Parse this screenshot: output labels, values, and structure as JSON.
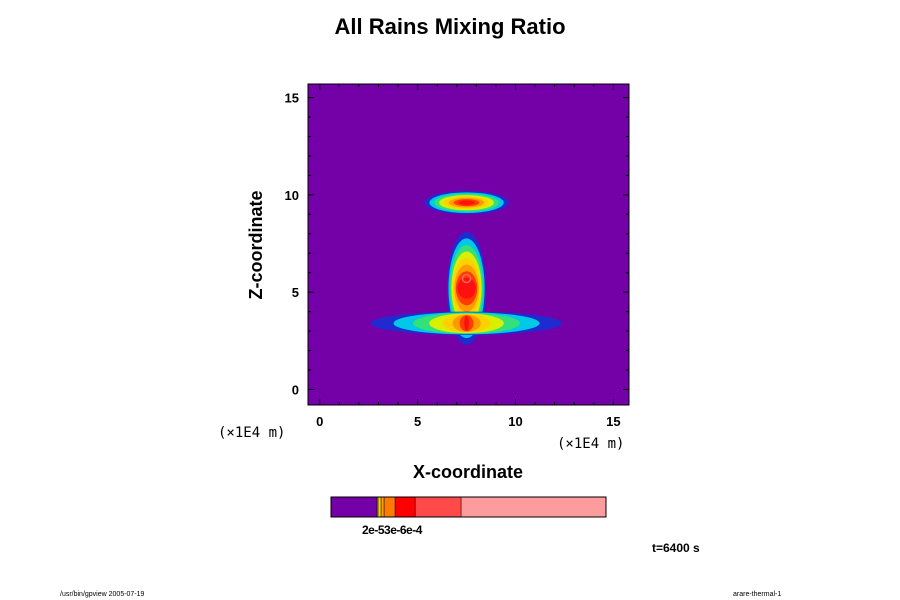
{
  "title": "All Rains Mixing Ratio",
  "chart_data": {
    "type": "heatmap",
    "title": "All Rains Mixing Ratio",
    "xlabel": "X-coordinate",
    "ylabel": "Z-coordinate",
    "x_unit_label": "(×1E4 m)",
    "y_unit_label": "(×1E4 m)",
    "xlim": [
      -0.6,
      15.8
    ],
    "ylim": [
      -0.8,
      15.7
    ],
    "x_ticks": [
      0,
      5,
      10,
      15
    ],
    "y_ticks": [
      0,
      5,
      10,
      15
    ],
    "x_tick_labels": [
      "0",
      "5",
      "10",
      "15"
    ],
    "y_tick_labels": [
      "0",
      "5",
      "10",
      "15"
    ],
    "background_color": "#7400a8",
    "levels": [
      {
        "color": "#1f2bd0"
      },
      {
        "color": "#00c8e6"
      },
      {
        "color": "#33e07a"
      },
      {
        "color": "#d8f000"
      },
      {
        "color": "#ffd000"
      },
      {
        "color": "#ff9a00"
      },
      {
        "color": "#ff3c00"
      },
      {
        "color": "#ff1010"
      }
    ],
    "features": [
      {
        "name": "upper layer",
        "center": [
          7.5,
          9.6
        ],
        "width": 4.3,
        "height": 1.2
      },
      {
        "name": "column",
        "center": [
          7.5,
          5.2
        ],
        "width": 2.0,
        "height": 5.8
      },
      {
        "name": "lower anvil",
        "center": [
          7.5,
          3.4
        ],
        "width": 9.8,
        "height": 1.2
      }
    ],
    "colorbar": {
      "label": "2e-53e-6e-4",
      "segments": [
        {
          "color": "#7400a8",
          "frac": 0.167
        },
        {
          "color": "#ff8a00",
          "frac": 0.004
        },
        {
          "color": "#ffd000",
          "frac": 0.011
        },
        {
          "color": "#ff9a00",
          "frac": 0.011
        },
        {
          "color": "#ff7a00",
          "frac": 0.04
        },
        {
          "color": "#ff0000",
          "frac": 0.073
        },
        {
          "color": "#ff4a4a",
          "frac": 0.167
        },
        {
          "color": "#fc9c9c",
          "frac": 0.527
        }
      ]
    },
    "grid": false
  },
  "time_label": "t=6400 s",
  "footer_left": "/usr/bin/gpview 2005-07-19",
  "footer_right": "arare-thermal-1"
}
